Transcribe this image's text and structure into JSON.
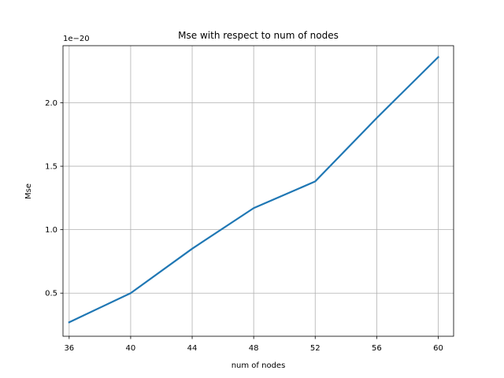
{
  "chart_data": {
    "type": "line",
    "title": "Mse with respect to num of nodes",
    "xlabel": "num of nodes",
    "ylabel": "Mse",
    "y_offset_label": "1e−20",
    "xlim": [
      35.6,
      61.0
    ],
    "ylim": [
      0.16,
      2.45
    ],
    "xticks": [
      36,
      40,
      44,
      48,
      52,
      56,
      60
    ],
    "xtick_labels": [
      "36",
      "40",
      "44",
      "48",
      "52",
      "56",
      "60"
    ],
    "yticks": [
      0.5,
      1.0,
      1.5,
      2.0
    ],
    "ytick_labels": [
      "0.5",
      "1.0",
      "1.5",
      "2.0"
    ],
    "grid": true,
    "series": [
      {
        "x": [
          36,
          40,
          44,
          48,
          52,
          56,
          60
        ],
        "values": [
          0.27,
          0.5,
          0.85,
          1.17,
          1.38,
          1.88,
          2.36
        ],
        "color": "#1f77b4"
      }
    ]
  }
}
